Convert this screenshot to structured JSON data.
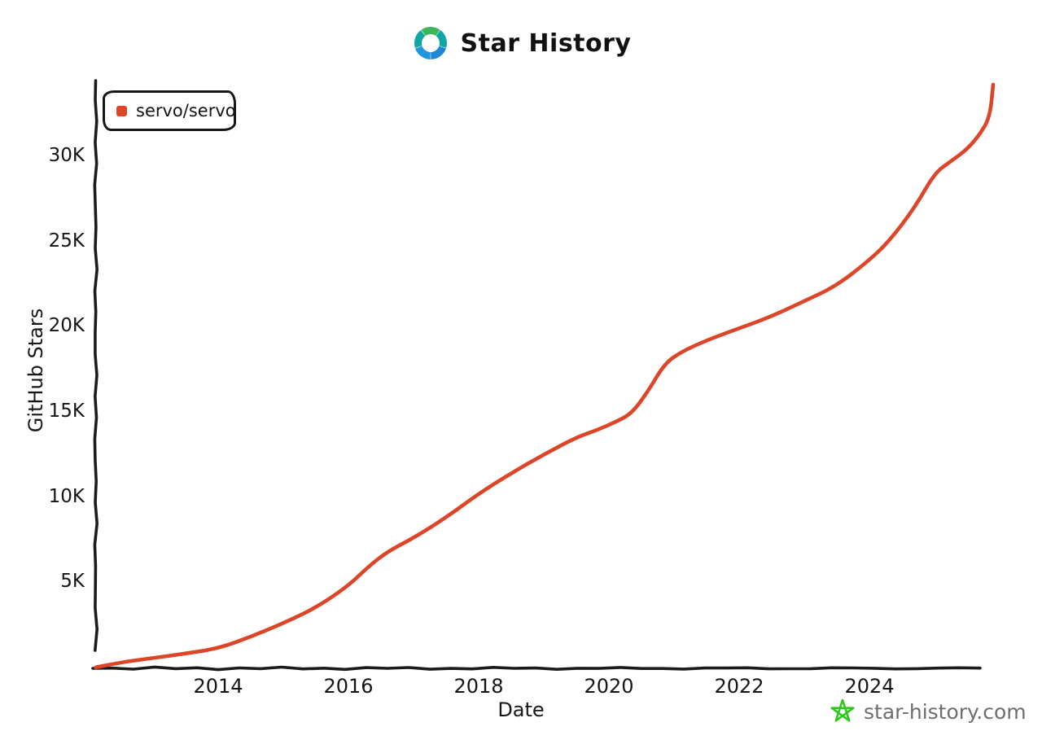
{
  "header": {
    "title": "Star History",
    "logo_colors": {
      "green": "#3cb55b",
      "teal_left": "#10a6a2",
      "teal_right": "#0fa7a4",
      "blue_right": "#1e87d5",
      "blue_left": "#2196dc"
    }
  },
  "legend": {
    "series_label": "servo/servo",
    "marker_color": "#dd4528"
  },
  "axes": {
    "ylabel": "GitHub Stars",
    "xlabel": "Date",
    "y_tick_labels": [
      "5K",
      "10K",
      "15K",
      "20K",
      "25K",
      "30K"
    ],
    "x_tick_labels": [
      "2014",
      "2016",
      "2018",
      "2020",
      "2022",
      "2024"
    ]
  },
  "watermark": {
    "text": "star-history.com",
    "star_color": "#2fc71d",
    "text_color": "#6e6e6e"
  },
  "colors": {
    "line": "#dd4528",
    "ink": "#1b1b1b",
    "background": "#ffffff"
  },
  "chart_data": {
    "type": "line",
    "title": "Star History",
    "xlabel": "Date",
    "ylabel": "GitHub Stars",
    "grid": false,
    "legend_position": "top-left",
    "x_axis": {
      "type": "time-years",
      "ticks": [
        2014,
        2016,
        2018,
        2020,
        2022,
        2024
      ],
      "range": [
        2012.1,
        2025.95
      ]
    },
    "y_axis": {
      "ticks": [
        5000,
        10000,
        15000,
        20000,
        25000,
        30000
      ],
      "range": [
        0,
        34500
      ]
    },
    "series": [
      {
        "name": "servo/servo",
        "color": "#dd4528",
        "points": [
          [
            2012.12,
            10
          ],
          [
            2012.5,
            300
          ],
          [
            2013.0,
            560
          ],
          [
            2013.5,
            820
          ],
          [
            2014.0,
            1120
          ],
          [
            2014.5,
            1800
          ],
          [
            2015.0,
            2600
          ],
          [
            2015.5,
            3500
          ],
          [
            2016.0,
            4800
          ],
          [
            2016.3,
            5900
          ],
          [
            2016.6,
            6800
          ],
          [
            2017.0,
            7600
          ],
          [
            2017.5,
            8800
          ],
          [
            2018.0,
            10200
          ],
          [
            2018.5,
            11400
          ],
          [
            2019.0,
            12500
          ],
          [
            2019.5,
            13500
          ],
          [
            2019.8,
            13900
          ],
          [
            2020.1,
            14400
          ],
          [
            2020.35,
            14900
          ],
          [
            2020.6,
            16200
          ],
          [
            2020.85,
            17800
          ],
          [
            2021.1,
            18500
          ],
          [
            2021.5,
            19200
          ],
          [
            2022.0,
            19900
          ],
          [
            2022.5,
            20600
          ],
          [
            2023.0,
            21500
          ],
          [
            2023.5,
            22400
          ],
          [
            2024.0,
            23900
          ],
          [
            2024.3,
            25000
          ],
          [
            2024.7,
            27000
          ],
          [
            2025.0,
            29000
          ],
          [
            2025.25,
            29700
          ],
          [
            2025.5,
            30400
          ],
          [
            2025.7,
            31300
          ],
          [
            2025.85,
            32300
          ],
          [
            2025.9,
            34200
          ]
        ]
      }
    ]
  }
}
